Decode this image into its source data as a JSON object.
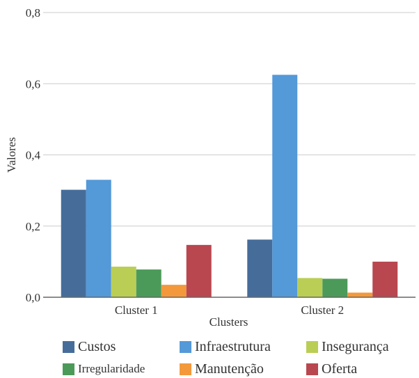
{
  "chart_data": {
    "type": "bar",
    "categories": [
      "Cluster 1",
      "Cluster 2"
    ],
    "series": [
      {
        "name": "Custos",
        "values": [
          0.302,
          0.162
        ],
        "color": "#466d9a"
      },
      {
        "name": "Infraestrutura",
        "values": [
          0.33,
          0.625
        ],
        "color": "#5499d8"
      },
      {
        "name": "Insegurança",
        "values": [
          0.086,
          0.054
        ],
        "color": "#bace56"
      },
      {
        "name": "Irregularidade",
        "values": [
          0.078,
          0.052
        ],
        "color": "#4c9a59"
      },
      {
        "name": "Manutenção",
        "values": [
          0.035,
          0.013
        ],
        "color": "#f3993b"
      },
      {
        "name": "Oferta",
        "values": [
          0.147,
          0.1
        ],
        "color": "#b9474f"
      }
    ],
    "xlabel": "Clusters",
    "ylabel": "Valores",
    "ylim": [
      0,
      0.8
    ],
    "yticks": [
      "0,0",
      "0,2",
      "0,4",
      "0,6",
      "0,8"
    ],
    "grid": true,
    "legend_position": "bottom"
  }
}
